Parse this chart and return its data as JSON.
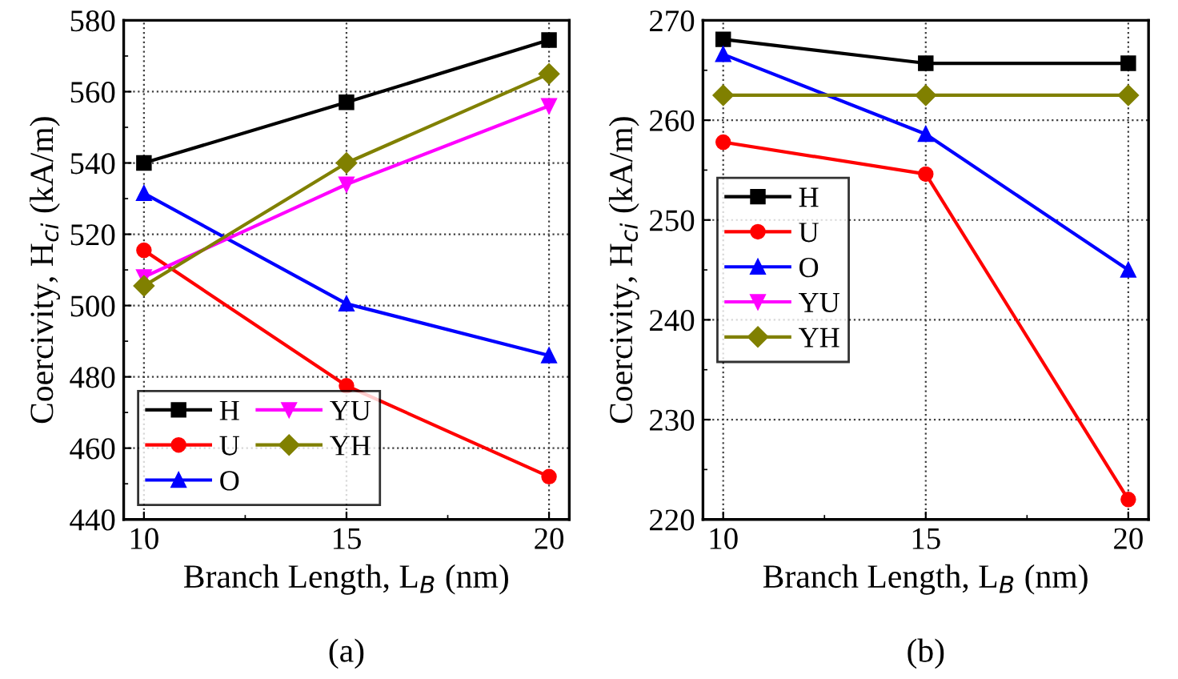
{
  "chart_data": [
    {
      "type": "line",
      "xlabel": "Branch Length, L$_{B}$ (nm)",
      "ylabel": "Coercivity, H$_{ci}$ (kA/m)",
      "annotations": [
        "(a)"
      ],
      "x": [
        10,
        15,
        20
      ],
      "xlim": [
        9.5,
        20.5
      ],
      "xticks": [
        10,
        15,
        20
      ],
      "ylim": [
        440,
        580
      ],
      "yticks": [
        440,
        460,
        480,
        500,
        520,
        540,
        560,
        580
      ],
      "grid": true,
      "legend": "bottom left",
      "line_style": "solid",
      "series": [
        {
          "name": "H",
          "color": "#000000",
          "marker": "square",
          "values": [
            540,
            557,
            574.5
          ]
        },
        {
          "name": "U",
          "color": "#ff0000",
          "marker": "circle",
          "values": [
            515.5,
            477.5,
            452
          ]
        },
        {
          "name": "O",
          "color": "#0000ff",
          "marker": "triangle",
          "values": [
            531.5,
            500.5,
            486
          ]
        },
        {
          "name": "YU",
          "color": "#ff00ff",
          "marker": "triangle_down",
          "values": [
            508,
            534,
            556
          ]
        },
        {
          "name": "YH",
          "color": "#808000",
          "marker": "diamond",
          "values": [
            505.5,
            540,
            565
          ]
        }
      ]
    },
    {
      "type": "line",
      "xlabel": "Branch Length, L$_{B}$ (nm)",
      "ylabel": "Coercivity, H$_{ci}$ (kA/m)",
      "annotations": [
        "(b)"
      ],
      "x": [
        10,
        15,
        20
      ],
      "xlim": [
        9.5,
        20.5
      ],
      "xticks": [
        10,
        15,
        20
      ],
      "ylim": [
        220,
        270
      ],
      "yticks": [
        220,
        230,
        240,
        250,
        260,
        270
      ],
      "grid": true,
      "legend": "left",
      "line_style": "solid",
      "series": [
        {
          "name": "H",
          "color": "#000000",
          "marker": "square",
          "values": [
            268.1,
            265.7,
            265.7
          ]
        },
        {
          "name": "U",
          "color": "#ff0000",
          "marker": "circle",
          "values": [
            257.8,
            254.6,
            222
          ]
        },
        {
          "name": "O",
          "color": "#0000ff",
          "marker": "triangle",
          "values": [
            266.6,
            258.6,
            245
          ]
        },
        {
          "name": "YU",
          "color": "#ff00ff",
          "marker": "triangle_down",
          "values": [
            null,
            null,
            null
          ]
        },
        {
          "name": "YH",
          "color": "#808000",
          "marker": "diamond",
          "values": [
            262.5,
            262.5,
            262.5
          ]
        }
      ]
    }
  ]
}
